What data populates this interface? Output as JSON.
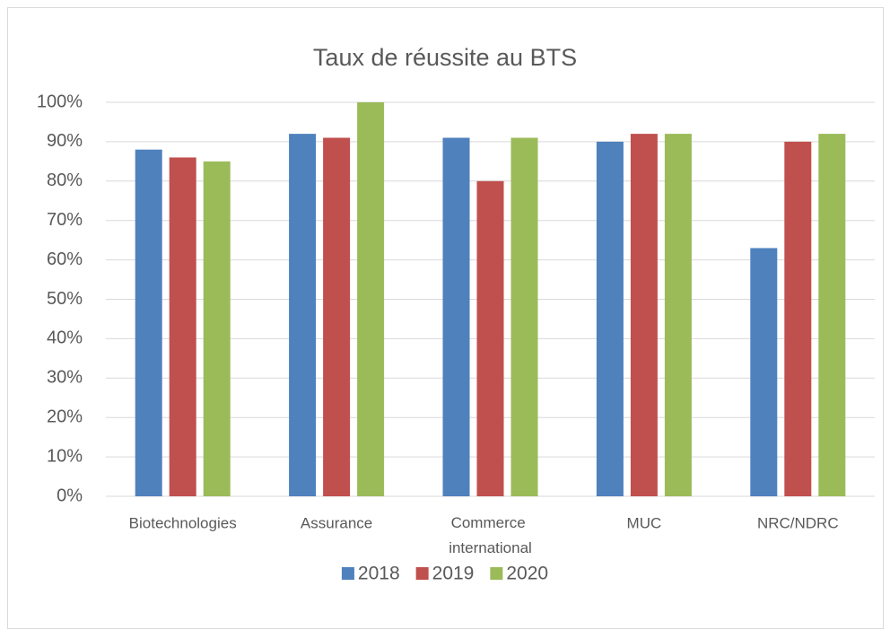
{
  "chart_data": {
    "type": "bar",
    "title": "Taux de réussite au BTS",
    "categories": [
      "Biotechnologies",
      "Assurance",
      "Commerce international",
      "MUC",
      "NRC/NDRC"
    ],
    "series": [
      {
        "name": "2018",
        "color": "#4f81bd",
        "values": [
          88,
          92,
          91,
          90,
          63
        ]
      },
      {
        "name": "2019",
        "color": "#c0504d",
        "values": [
          86,
          91,
          80,
          92,
          90
        ]
      },
      {
        "name": "2020",
        "color": "#9bbb59",
        "values": [
          85,
          100,
          91,
          92,
          92
        ]
      }
    ],
    "ylim": [
      0,
      100
    ],
    "yticks": [
      {
        "value": 0,
        "label": "0%"
      },
      {
        "value": 10,
        "label": "10%"
      },
      {
        "value": 20,
        "label": "20%"
      },
      {
        "value": 30,
        "label": "30%"
      },
      {
        "value": 40,
        "label": "40%"
      },
      {
        "value": 50,
        "label": "50%"
      },
      {
        "value": 60,
        "label": "60%"
      },
      {
        "value": 70,
        "label": "70%"
      },
      {
        "value": 80,
        "label": "80%"
      },
      {
        "value": 90,
        "label": "90%"
      },
      {
        "value": 100,
        "label": "100%"
      }
    ],
    "grid": true,
    "legend": "bottom"
  }
}
